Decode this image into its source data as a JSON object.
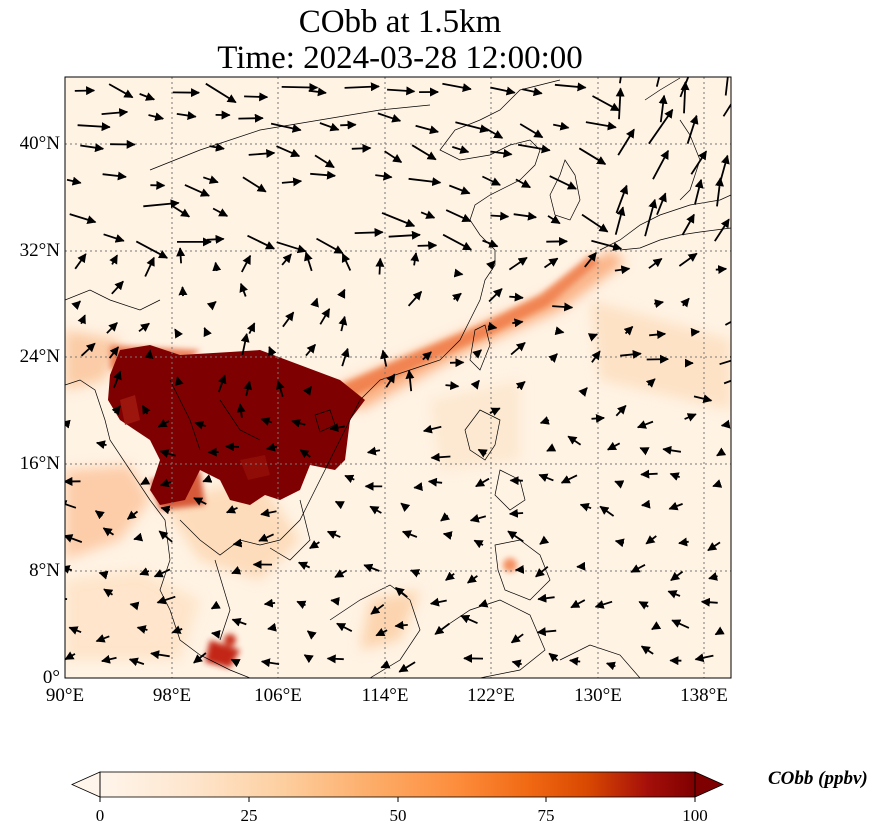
{
  "title": {
    "line1": "CObb at 1.5km",
    "line2": "Time: 2024-03-28 12:00:00"
  },
  "axes": {
    "lon_ticks": [
      "90°E",
      "98°E",
      "106°E",
      "114°E",
      "122°E",
      "130°E",
      "138°E"
    ],
    "lat_ticks": [
      "40°N",
      "32°N",
      "24°N",
      "16°N",
      "8°N",
      "0°"
    ],
    "lon_range": [
      90,
      140
    ],
    "lat_range": [
      0,
      45
    ]
  },
  "colorbar": {
    "label": "CObb (ppbv)",
    "ticks": [
      "0",
      "25",
      "50",
      "75",
      "100"
    ],
    "range": [
      0,
      100
    ],
    "colormap": [
      "#fff5eb",
      "#fee6ce",
      "#fdd0a2",
      "#fdae6b",
      "#fd8d3c",
      "#f16913",
      "#d94801",
      "#a50f0a",
      "#7f0000"
    ]
  },
  "colors": {
    "background": "#fff3e4",
    "coast": "#000000",
    "grid": "#777777",
    "arrow": "#000000"
  }
}
